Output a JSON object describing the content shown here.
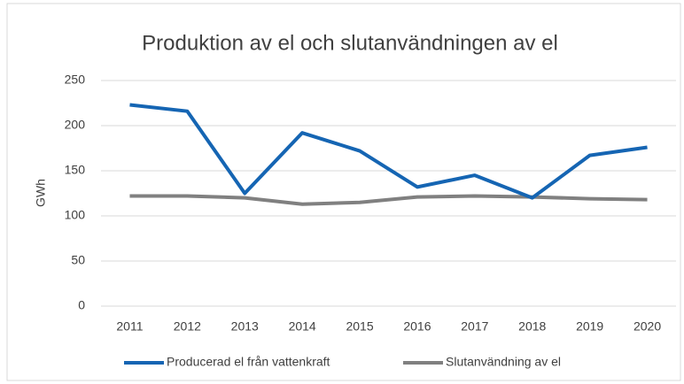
{
  "chart_data": {
    "type": "line",
    "title": "Produktion av el och slutanvändningen av el",
    "y_label": "GWh",
    "categories": [
      "2011",
      "2012",
      "2013",
      "2014",
      "2015",
      "2016",
      "2017",
      "2018",
      "2019",
      "2020"
    ],
    "series": [
      {
        "name": "Producerad el från vattenkraft",
        "color": "#1565b3",
        "values": [
          223,
          216,
          125,
          192,
          172,
          132,
          145,
          120,
          167,
          176
        ]
      },
      {
        "name": "Slutanvändning av el",
        "color": "#808080",
        "values": [
          122,
          122,
          120,
          113,
          115,
          121,
          122,
          121,
          119,
          118
        ]
      }
    ],
    "ylim": [
      0,
      250
    ],
    "yticks": [
      0,
      50,
      100,
      150,
      200,
      250
    ],
    "grid": true,
    "legend": "bottom"
  }
}
